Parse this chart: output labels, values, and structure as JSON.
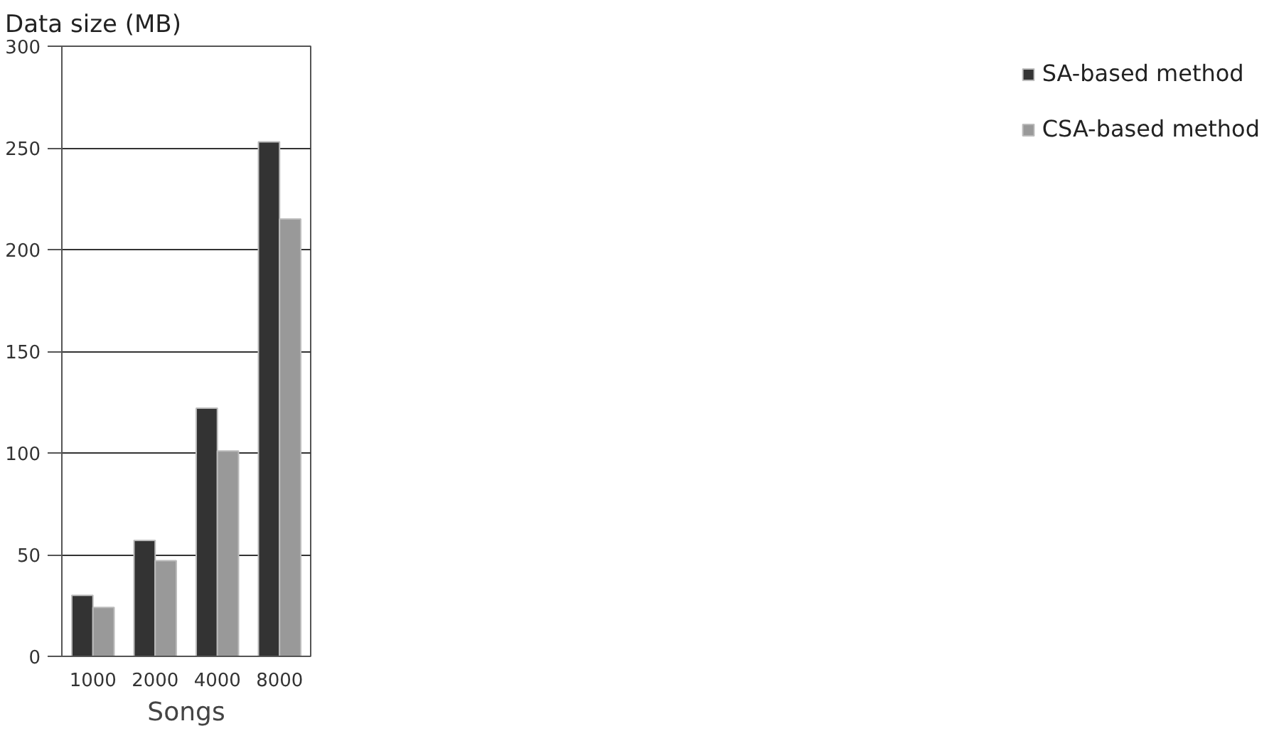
{
  "chart_data": {
    "type": "bar",
    "title": "Data size (MB)",
    "xlabel": "Songs",
    "categories": [
      "1000",
      "2000",
      "4000",
      "8000"
    ],
    "series": [
      {
        "name": "SA-based method",
        "color": "#333333",
        "values": [
          30,
          57,
          122,
          253
        ]
      },
      {
        "name": "CSA-based method",
        "color": "#999999",
        "values": [
          24,
          47,
          101,
          215
        ]
      }
    ],
    "ylim": [
      0,
      300
    ],
    "yticks": [
      0,
      50,
      100,
      150,
      200,
      250,
      300
    ],
    "grid": "y",
    "legend": "right"
  }
}
